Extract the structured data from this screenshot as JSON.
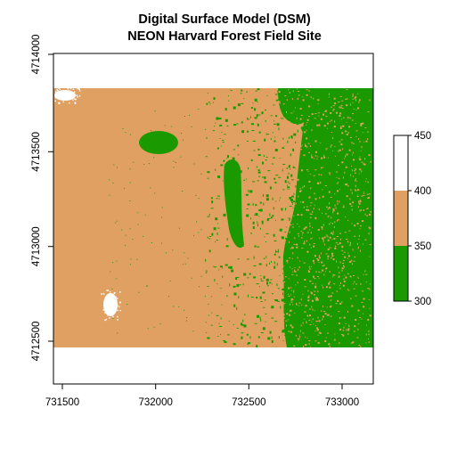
{
  "chart_data": {
    "type": "heatmap",
    "title": "Digital Surface Model (DSM)",
    "subtitle": "NEON Harvard Forest Field Site",
    "xlabel": "",
    "ylabel": "",
    "xlim": [
      731450,
      733150
    ],
    "ylim": [
      4712350,
      4714030
    ],
    "raster_extent": {
      "x": [
        731450,
        733150
      ],
      "y": [
        4712480,
        4713830
      ]
    },
    "x_ticks": [
      "731500",
      "732000",
      "732500",
      "733000"
    ],
    "y_ticks": [
      "4712500",
      "4713000",
      "4713500",
      "4714000"
    ],
    "grid": false,
    "legend_position": "right",
    "legend": {
      "breaks": [
        300,
        350,
        400,
        450
      ],
      "labels": [
        "450",
        "400",
        "350",
        "300"
      ],
      "colors": [
        "#1a9a00",
        "#e0a062",
        "#ffffff"
      ]
    },
    "colors": {
      "green": "#1a9a00",
      "tan": "#e0a062",
      "white": "#ffffff",
      "background": "#ffffff"
    }
  }
}
